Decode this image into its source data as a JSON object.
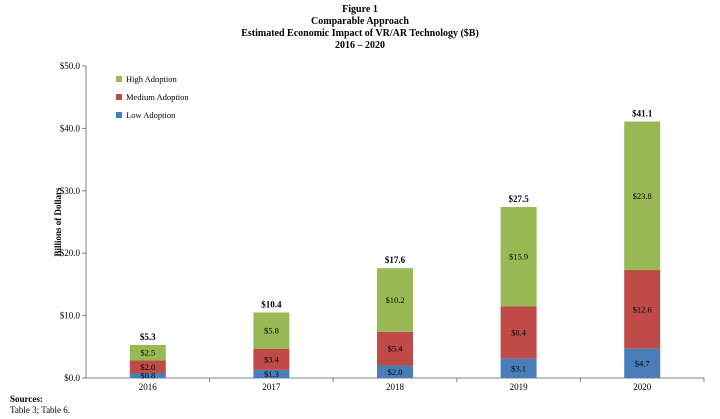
{
  "figure": {
    "label": "Figure 1",
    "title": "Comparable Approach",
    "subtitle": "Estimated Economic Impact of VR/AR Technology ($B)",
    "range": "2016 – 2020"
  },
  "sources": {
    "label": "Sources:",
    "text": "Table 3; Table 6."
  },
  "chart_data": {
    "type": "bar",
    "stacked": true,
    "categories": [
      "2016",
      "2017",
      "2018",
      "2019",
      "2020"
    ],
    "series": [
      {
        "name": "Low Adoption",
        "color": "#4a7ebb",
        "values": [
          0.8,
          1.3,
          2.0,
          3.1,
          4.7
        ],
        "labels": [
          "$0.8",
          "$1.3",
          "$2.0",
          "$3.1",
          "$4.7"
        ]
      },
      {
        "name": "Medium Adoption",
        "color": "#be4b48",
        "values": [
          2.0,
          3.4,
          5.4,
          8.4,
          12.6
        ],
        "labels": [
          "$2.0",
          "$3.4",
          "$5.4",
          "$8.4",
          "$12.6"
        ]
      },
      {
        "name": "High Adoption",
        "color": "#98b954",
        "values": [
          2.5,
          5.8,
          10.2,
          15.9,
          23.8
        ],
        "labels": [
          "$2.5",
          "$5.8",
          "$10.2",
          "$15.9",
          "$23.8"
        ]
      }
    ],
    "totals": [
      "$5.3",
      "$10.4",
      "$17.6",
      "$27.5",
      "$41.1"
    ],
    "ylabel": "Billions of Dollars",
    "ylim": [
      0,
      50
    ],
    "yticks": [
      0,
      10,
      20,
      30,
      40,
      50
    ],
    "ytick_labels": [
      "$0.0",
      "$10.0",
      "$20.0",
      "$30.0",
      "$40.0",
      "$50.0"
    ],
    "grid": false,
    "legend": {
      "position": "top-left",
      "order": [
        "High Adoption",
        "Medium Adoption",
        "Low Adoption"
      ]
    }
  }
}
